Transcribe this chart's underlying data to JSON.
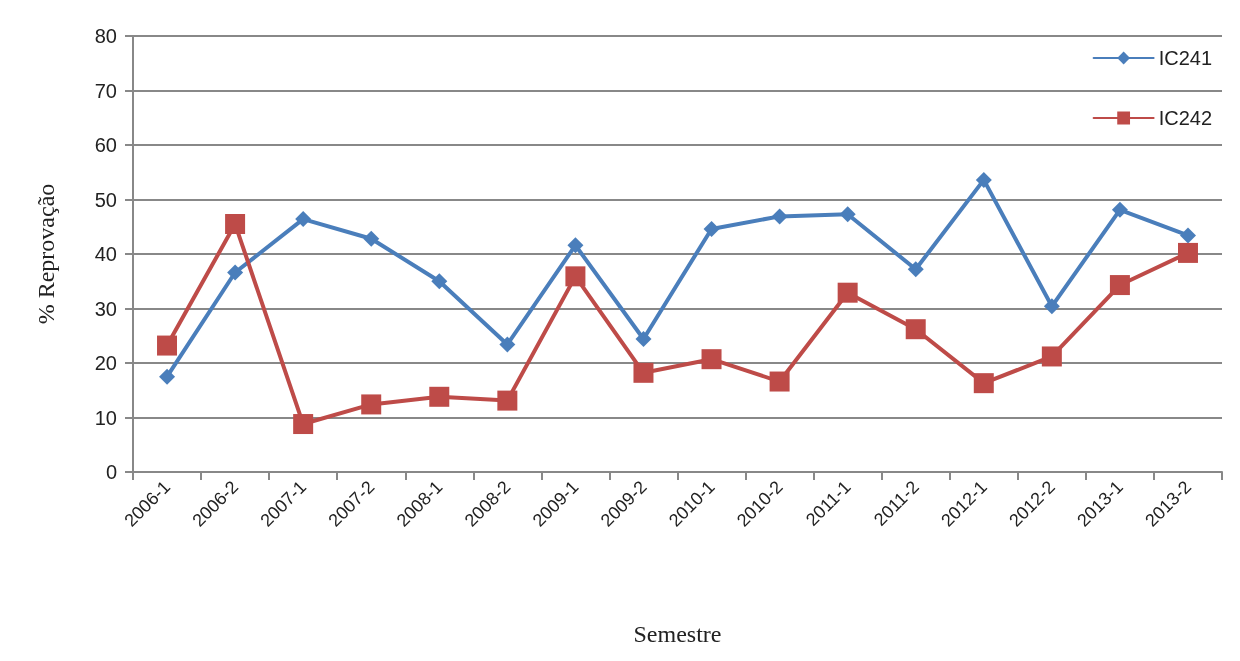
{
  "chart_data": {
    "type": "line",
    "xlabel": "Semestre",
    "ylabel": "% Reprovação",
    "categories": [
      "2006-1",
      "2006-2",
      "2007-1",
      "2007-2",
      "2008-1",
      "2008-2",
      "2009-1",
      "2009-2",
      "2010-1",
      "2010-2",
      "2011-1",
      "2011-2",
      "2012-1",
      "2012-2",
      "2013-1",
      "2013-2"
    ],
    "series": [
      {
        "name": "IC241",
        "color": "#4a7ebb",
        "marker": "diamond",
        "values": [
          17.5,
          36.6,
          46.4,
          42.8,
          35,
          23.4,
          41.6,
          24.4,
          44.6,
          46.9,
          47.3,
          37.2,
          53.6,
          30.4,
          48.1,
          43.4
        ]
      },
      {
        "name": "IC242",
        "color": "#be4b48",
        "marker": "square",
        "values": [
          23.2,
          45.5,
          8.8,
          12.4,
          13.8,
          13.1,
          35.9,
          18.2,
          20.7,
          16.6,
          32.9,
          26.2,
          16.3,
          21.2,
          34.3,
          40.2
        ]
      }
    ],
    "ylim": [
      0,
      80
    ],
    "yticks": [
      0,
      10,
      20,
      30,
      40,
      50,
      60,
      70,
      80
    ],
    "grid": "y",
    "legend": "top right",
    "line_style": "solid"
  }
}
